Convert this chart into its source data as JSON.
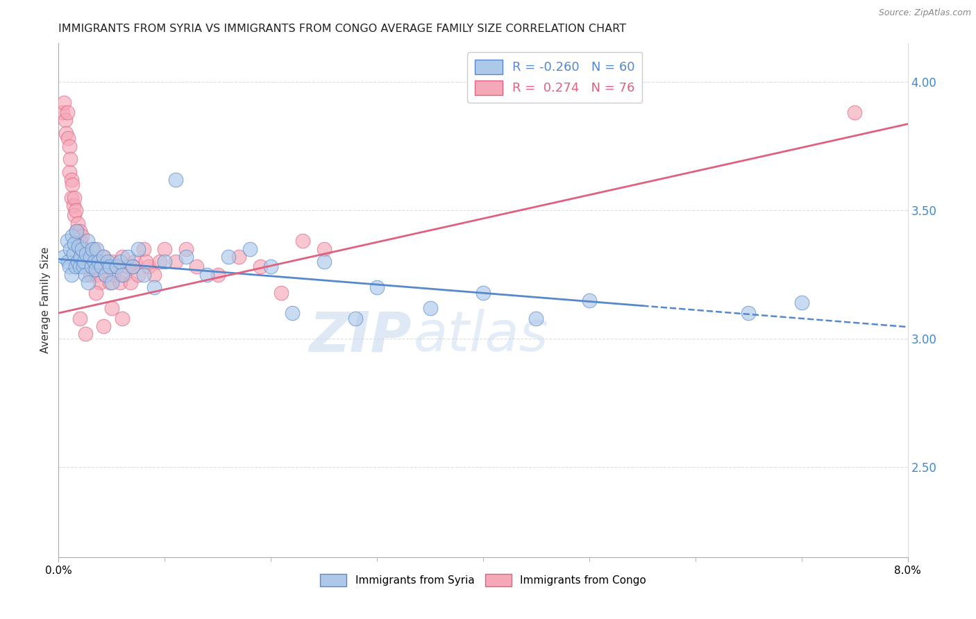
{
  "title": "IMMIGRANTS FROM SYRIA VS IMMIGRANTS FROM CONGO AVERAGE FAMILY SIZE CORRELATION CHART",
  "source": "Source: ZipAtlas.com",
  "ylabel": "Average Family Size",
  "right_yticks": [
    2.5,
    3.0,
    3.5,
    4.0
  ],
  "xmin": 0.0,
  "xmax": 8.0,
  "ymin": 2.15,
  "ymax": 4.15,
  "syria_color": "#adc8e8",
  "congo_color": "#f5a8b8",
  "syria_R": -0.26,
  "syria_N": 60,
  "congo_R": 0.274,
  "congo_N": 76,
  "syria_line_color": "#5588cc",
  "congo_line_color": "#e06080",
  "watermark_text": "ZIP",
  "watermark_text2": "atlas",
  "background_color": "#ffffff",
  "grid_color": "#dddddd",
  "title_fontsize": 11.5,
  "axis_fontsize": 11,
  "legend_fontsize": 13,
  "right_axis_color": "#4488cc",
  "syria_dash_start": 5.5,
  "syria_line_intercept": 3.31,
  "syria_line_slope": -0.033,
  "congo_line_intercept": 3.1,
  "congo_line_slope": 0.092,
  "syria_scatter_x": [
    0.05,
    0.08,
    0.09,
    0.1,
    0.11,
    0.12,
    0.13,
    0.14,
    0.15,
    0.16,
    0.17,
    0.18,
    0.19,
    0.2,
    0.21,
    0.22,
    0.23,
    0.24,
    0.25,
    0.26,
    0.27,
    0.28,
    0.3,
    0.31,
    0.32,
    0.34,
    0.35,
    0.36,
    0.38,
    0.4,
    0.42,
    0.44,
    0.46,
    0.48,
    0.5,
    0.55,
    0.58,
    0.6,
    0.65,
    0.7,
    0.75,
    0.8,
    0.9,
    1.0,
    1.1,
    1.2,
    1.4,
    1.6,
    1.8,
    2.0,
    2.2,
    2.5,
    2.8,
    3.0,
    3.5,
    4.0,
    4.5,
    5.0,
    6.5,
    7.0
  ],
  "syria_scatter_y": [
    3.32,
    3.38,
    3.3,
    3.28,
    3.35,
    3.25,
    3.4,
    3.33,
    3.37,
    3.28,
    3.42,
    3.3,
    3.36,
    3.28,
    3.32,
    3.35,
    3.28,
    3.3,
    3.25,
    3.33,
    3.38,
    3.22,
    3.32,
    3.28,
    3.35,
    3.3,
    3.27,
    3.35,
    3.3,
    3.28,
    3.32,
    3.25,
    3.3,
    3.28,
    3.22,
    3.28,
    3.3,
    3.25,
    3.32,
    3.28,
    3.35,
    3.25,
    3.2,
    3.3,
    3.62,
    3.32,
    3.25,
    3.32,
    3.35,
    3.28,
    3.1,
    3.3,
    3.08,
    3.2,
    3.12,
    3.18,
    3.08,
    3.15,
    3.1,
    3.14
  ],
  "congo_scatter_x": [
    0.04,
    0.05,
    0.06,
    0.07,
    0.08,
    0.09,
    0.1,
    0.1,
    0.11,
    0.12,
    0.12,
    0.13,
    0.14,
    0.15,
    0.15,
    0.16,
    0.17,
    0.18,
    0.19,
    0.2,
    0.2,
    0.21,
    0.22,
    0.22,
    0.23,
    0.24,
    0.25,
    0.26,
    0.28,
    0.29,
    0.3,
    0.31,
    0.32,
    0.33,
    0.35,
    0.36,
    0.38,
    0.39,
    0.4,
    0.42,
    0.44,
    0.46,
    0.48,
    0.5,
    0.52,
    0.55,
    0.58,
    0.6,
    0.62,
    0.65,
    0.68,
    0.72,
    0.75,
    0.8,
    0.85,
    0.9,
    0.95,
    1.0,
    1.1,
    1.2,
    1.3,
    1.5,
    1.7,
    1.9,
    2.1,
    2.3,
    2.5,
    0.2,
    0.25,
    0.35,
    0.42,
    0.5,
    0.6,
    0.7,
    0.82,
    7.5
  ],
  "congo_scatter_y": [
    3.88,
    3.92,
    3.85,
    3.8,
    3.88,
    3.78,
    3.75,
    3.65,
    3.7,
    3.62,
    3.55,
    3.6,
    3.52,
    3.55,
    3.48,
    3.5,
    3.42,
    3.45,
    3.38,
    3.42,
    3.35,
    3.38,
    3.4,
    3.32,
    3.35,
    3.3,
    3.28,
    3.32,
    3.3,
    3.28,
    3.25,
    3.3,
    3.28,
    3.35,
    3.28,
    3.25,
    3.3,
    3.22,
    3.28,
    3.32,
    3.25,
    3.28,
    3.22,
    3.3,
    3.25,
    3.28,
    3.22,
    3.32,
    3.25,
    3.28,
    3.22,
    3.3,
    3.25,
    3.35,
    3.28,
    3.25,
    3.3,
    3.35,
    3.3,
    3.35,
    3.28,
    3.25,
    3.32,
    3.28,
    3.18,
    3.38,
    3.35,
    3.08,
    3.02,
    3.18,
    3.05,
    3.12,
    3.08,
    3.28,
    3.3,
    3.88
  ]
}
